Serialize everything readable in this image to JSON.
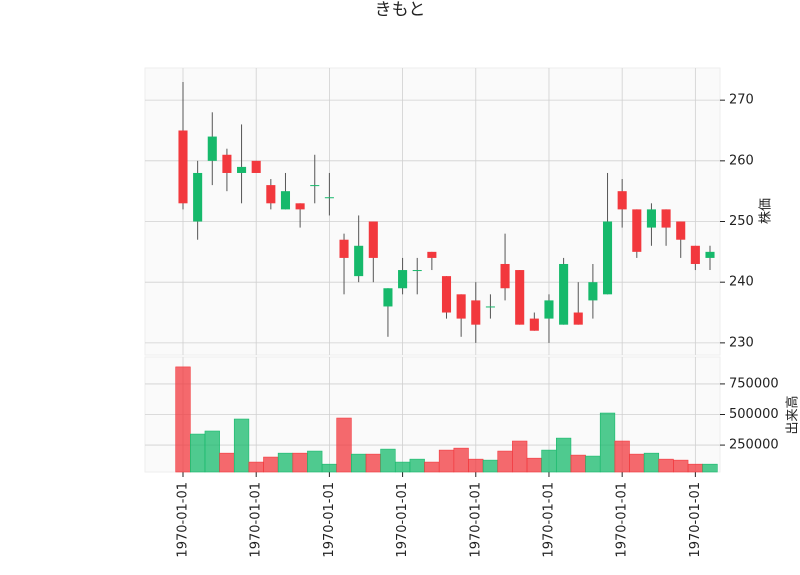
{
  "chart_data": {
    "type": "candlestick",
    "title": "きもと",
    "categories": [
      "1970-01-01",
      null,
      null,
      null,
      null,
      "1970-01-01",
      null,
      null,
      null,
      null,
      "1970-01-01",
      null,
      null,
      null,
      null,
      "1970-01-01",
      null,
      null,
      null,
      null,
      "1970-01-01",
      null,
      null,
      null,
      null,
      "1970-01-01",
      null,
      null,
      null,
      null,
      "1970-01-01",
      null,
      null,
      null,
      null,
      "1970-01-01",
      null
    ],
    "open": [
      265,
      250,
      260,
      261,
      258,
      260,
      256,
      252,
      253,
      256,
      254,
      247,
      241,
      250,
      236,
      239,
      242,
      245,
      241,
      238,
      237,
      236,
      243,
      242,
      234,
      234,
      233,
      235,
      237,
      238,
      255,
      252,
      249,
      252,
      250,
      246,
      244
    ],
    "high": [
      273,
      260,
      268,
      262,
      266,
      260,
      257,
      258,
      253,
      261,
      258,
      248,
      251,
      250,
      239,
      244,
      244,
      245,
      241,
      238,
      240,
      238,
      248,
      242,
      235,
      238,
      244,
      240,
      243,
      258,
      257,
      252,
      253,
      252,
      250,
      246,
      246
    ],
    "low": [
      252,
      247,
      256,
      255,
      253,
      258,
      252,
      252,
      249,
      253,
      251,
      238,
      240,
      240,
      231,
      238,
      238,
      242,
      234,
      231,
      230,
      234,
      237,
      233,
      232,
      230,
      233,
      233,
      234,
      238,
      249,
      244,
      246,
      246,
      244,
      242,
      242
    ],
    "close": [
      253,
      258,
      264,
      258,
      259,
      258,
      253,
      255,
      252,
      256,
      254,
      244,
      246,
      244,
      239,
      242,
      242,
      244,
      235,
      234,
      233,
      236,
      239,
      233,
      232,
      237,
      243,
      233,
      240,
      250,
      252,
      245,
      252,
      249,
      247,
      243,
      245
    ],
    "volume": [
      889000,
      340000,
      365000,
      184000,
      463000,
      111000,
      152000,
      184000,
      184000,
      201000,
      94000,
      471000,
      176000,
      176000,
      217000,
      111000,
      135000,
      111000,
      209000,
      225000,
      135000,
      127000,
      201000,
      283000,
      143000,
      209000,
      307000,
      168000,
      160000,
      512000,
      283000,
      176000,
      184000,
      135000,
      127000,
      94000,
      94000
    ],
    "up_color": "#16b96b",
    "down_color": "#f2383d",
    "ylabel": "株価",
    "ylim": [
      228,
      275.3
    ],
    "yticks": [
      230,
      240,
      250,
      260,
      270
    ],
    "volume_ylabel": "出来高",
    "volume_ylim": [
      30000,
      970000
    ],
    "volume_yticks": [
      250000,
      500000,
      750000
    ],
    "grid": true
  }
}
